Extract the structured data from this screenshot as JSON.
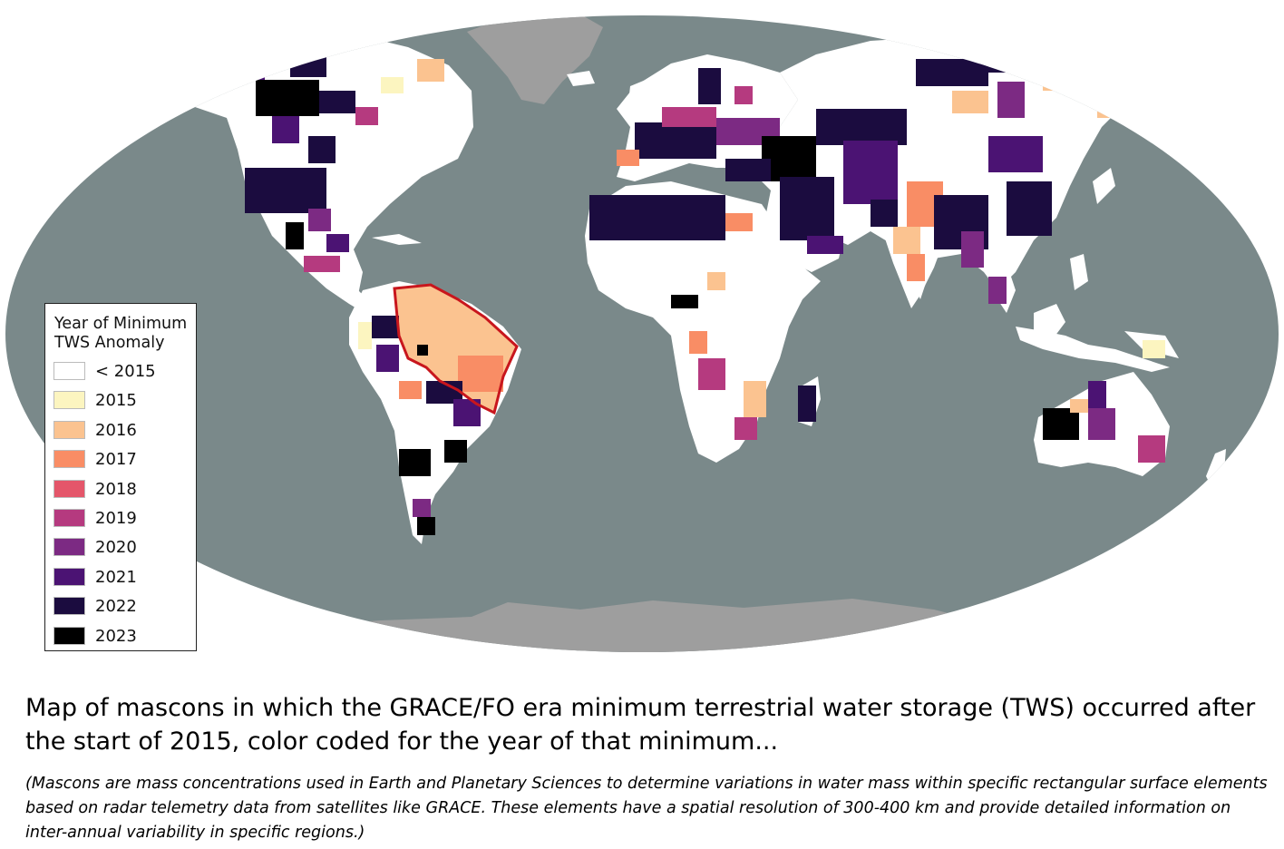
{
  "map": {
    "ocean_color": "#7a898a",
    "land_color": "#ffffff",
    "polar_color": "#9e9e9e",
    "highlight_outline_color": "#c8161d"
  },
  "legend": {
    "title": "Year of Minimum\nTWS Anomaly",
    "items": [
      {
        "label": "< 2015",
        "color": "#ffffff"
      },
      {
        "label": "2015",
        "color": "#fcf5c0"
      },
      {
        "label": "2016",
        "color": "#fbc390"
      },
      {
        "label": "2017",
        "color": "#f98d65"
      },
      {
        "label": "2018",
        "color": "#e4566a"
      },
      {
        "label": "2019",
        "color": "#b53a7f"
      },
      {
        "label": "2020",
        "color": "#7c2a83"
      },
      {
        "label": "2021",
        "color": "#4b1373"
      },
      {
        "label": "2022",
        "color": "#1b0c3f"
      },
      {
        "label": "2023",
        "color": "#000000"
      }
    ]
  },
  "caption": {
    "main": "Map of mascons in which the GRACE/FO era minimum terrestrial water storage (TWS) occurred after the start of 2015, color coded for the year of that minimum...",
    "note": "(Mascons are mass concentrations used in Earth and Planetary Sciences to determine variations in water mass within specific rectangular surface elements based on radar telemetry data from satellites like GRACE. These elements have a spatial resolution of 300-400 km and provide detailed information on inter-annual variability in specific regions.)"
  }
}
